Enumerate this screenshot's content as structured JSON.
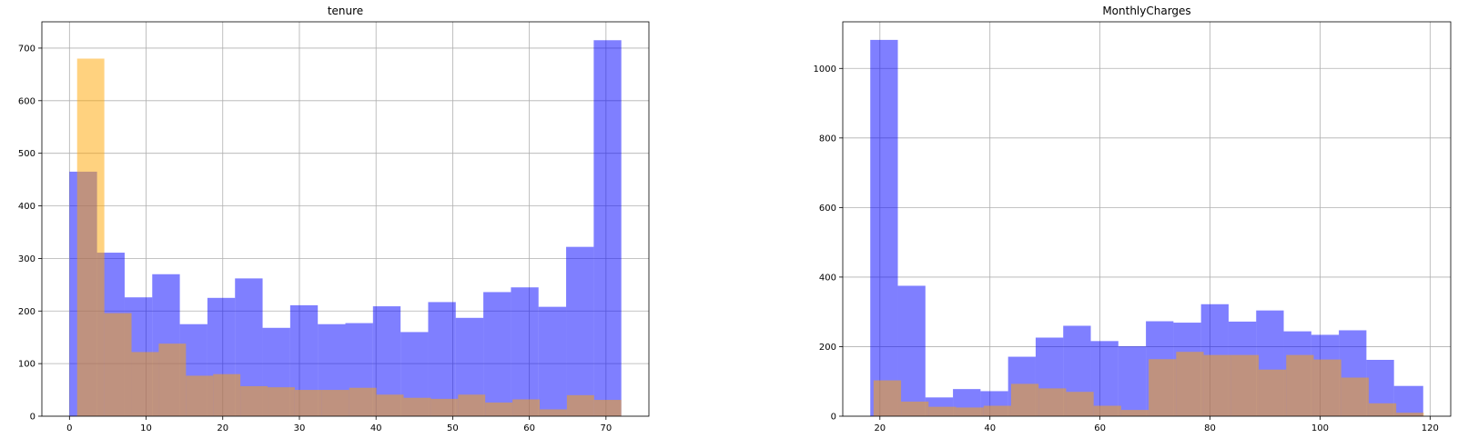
{
  "chart_data": [
    {
      "type": "bar",
      "title": "tenure",
      "xlabel": "",
      "ylabel": "",
      "xlim": [
        -3.6,
        75.6
      ],
      "ylim": [
        0,
        750
      ],
      "xticks": [
        0,
        10,
        20,
        30,
        40,
        50,
        60,
        70
      ],
      "yticks": [
        0,
        100,
        200,
        300,
        400,
        500,
        600,
        700
      ],
      "grid": true,
      "series": [
        {
          "color": "#0000ff",
          "opacity": 0.5,
          "bins": [
            {
              "x0": 0,
              "x1": 3.6,
              "y": 465
            },
            {
              "x0": 3.6,
              "x1": 7.2,
              "y": 311
            },
            {
              "x0": 7.2,
              "x1": 10.8,
              "y": 226
            },
            {
              "x0": 10.8,
              "x1": 14.4,
              "y": 270
            },
            {
              "x0": 14.4,
              "x1": 18.0,
              "y": 175
            },
            {
              "x0": 18.0,
              "x1": 21.6,
              "y": 225
            },
            {
              "x0": 21.6,
              "x1": 25.2,
              "y": 262
            },
            {
              "x0": 25.2,
              "x1": 28.8,
              "y": 168
            },
            {
              "x0": 28.8,
              "x1": 32.4,
              "y": 211
            },
            {
              "x0": 32.4,
              "x1": 36.0,
              "y": 175
            },
            {
              "x0": 36.0,
              "x1": 39.6,
              "y": 177
            },
            {
              "x0": 39.6,
              "x1": 43.2,
              "y": 209
            },
            {
              "x0": 43.2,
              "x1": 46.8,
              "y": 160
            },
            {
              "x0": 46.8,
              "x1": 50.4,
              "y": 217
            },
            {
              "x0": 50.4,
              "x1": 54.0,
              "y": 187
            },
            {
              "x0": 54.0,
              "x1": 57.6,
              "y": 236
            },
            {
              "x0": 57.6,
              "x1": 61.2,
              "y": 245
            },
            {
              "x0": 61.2,
              "x1": 64.8,
              "y": 208
            },
            {
              "x0": 64.8,
              "x1": 68.4,
              "y": 322
            },
            {
              "x0": 68.4,
              "x1": 72.0,
              "y": 715
            }
          ]
        },
        {
          "color": "#ffa500",
          "opacity": 0.5,
          "bins": [
            {
              "x0": 1.0,
              "x1": 4.55,
              "y": 680
            },
            {
              "x0": 4.55,
              "x1": 8.1,
              "y": 196
            },
            {
              "x0": 8.1,
              "x1": 11.65,
              "y": 122
            },
            {
              "x0": 11.65,
              "x1": 15.2,
              "y": 138
            },
            {
              "x0": 15.2,
              "x1": 18.75,
              "y": 77
            },
            {
              "x0": 18.75,
              "x1": 22.3,
              "y": 80
            },
            {
              "x0": 22.3,
              "x1": 25.85,
              "y": 57
            },
            {
              "x0": 25.85,
              "x1": 29.4,
              "y": 55
            },
            {
              "x0": 29.4,
              "x1": 32.95,
              "y": 50
            },
            {
              "x0": 32.95,
              "x1": 36.5,
              "y": 50
            },
            {
              "x0": 36.5,
              "x1": 40.05,
              "y": 54
            },
            {
              "x0": 40.05,
              "x1": 43.6,
              "y": 41
            },
            {
              "x0": 43.6,
              "x1": 47.15,
              "y": 35
            },
            {
              "x0": 47.15,
              "x1": 50.7,
              "y": 33
            },
            {
              "x0": 50.7,
              "x1": 54.25,
              "y": 41
            },
            {
              "x0": 54.25,
              "x1": 57.8,
              "y": 26
            },
            {
              "x0": 57.8,
              "x1": 61.35,
              "y": 32
            },
            {
              "x0": 61.35,
              "x1": 64.9,
              "y": 13
            },
            {
              "x0": 64.9,
              "x1": 68.45,
              "y": 40
            },
            {
              "x0": 68.45,
              "x1": 72.0,
              "y": 31
            }
          ]
        }
      ]
    },
    {
      "type": "bar",
      "title": "MonthlyCharges",
      "xlabel": "",
      "ylabel": "",
      "xlim": [
        13.25,
        123.75
      ],
      "ylim": [
        0,
        1134
      ],
      "xticks": [
        20,
        40,
        60,
        80,
        100,
        120
      ],
      "yticks": [
        0,
        200,
        400,
        600,
        800,
        1000
      ],
      "grid": true,
      "series": [
        {
          "color": "#0000ff",
          "opacity": 0.5,
          "bins": [
            {
              "x0": 18.25,
              "x1": 23.26,
              "y": 1082
            },
            {
              "x0": 23.26,
              "x1": 28.27,
              "y": 375
            },
            {
              "x0": 28.27,
              "x1": 33.28,
              "y": 54
            },
            {
              "x0": 33.28,
              "x1": 38.29,
              "y": 78
            },
            {
              "x0": 38.29,
              "x1": 43.3,
              "y": 72
            },
            {
              "x0": 43.3,
              "x1": 48.31,
              "y": 171
            },
            {
              "x0": 48.31,
              "x1": 53.32,
              "y": 226
            },
            {
              "x0": 53.32,
              "x1": 58.33,
              "y": 260
            },
            {
              "x0": 58.33,
              "x1": 63.34,
              "y": 216
            },
            {
              "x0": 63.34,
              "x1": 68.35,
              "y": 201
            },
            {
              "x0": 68.35,
              "x1": 73.36,
              "y": 273
            },
            {
              "x0": 73.36,
              "x1": 78.37,
              "y": 269
            },
            {
              "x0": 78.37,
              "x1": 83.38,
              "y": 322
            },
            {
              "x0": 83.38,
              "x1": 88.39,
              "y": 272
            },
            {
              "x0": 88.39,
              "x1": 93.4,
              "y": 304
            },
            {
              "x0": 93.4,
              "x1": 98.41,
              "y": 244
            },
            {
              "x0": 98.41,
              "x1": 103.42,
              "y": 234
            },
            {
              "x0": 103.42,
              "x1": 108.43,
              "y": 247
            },
            {
              "x0": 108.43,
              "x1": 113.44,
              "y": 162
            },
            {
              "x0": 113.44,
              "x1": 118.75,
              "y": 87
            }
          ]
        },
        {
          "color": "#ffa500",
          "opacity": 0.5,
          "bins": [
            {
              "x0": 18.85,
              "x1": 23.85,
              "y": 103
            },
            {
              "x0": 23.85,
              "x1": 28.85,
              "y": 42
            },
            {
              "x0": 28.85,
              "x1": 33.85,
              "y": 27
            },
            {
              "x0": 33.85,
              "x1": 38.85,
              "y": 25
            },
            {
              "x0": 38.85,
              "x1": 43.85,
              "y": 30
            },
            {
              "x0": 43.85,
              "x1": 48.85,
              "y": 93
            },
            {
              "x0": 48.85,
              "x1": 53.85,
              "y": 80
            },
            {
              "x0": 53.85,
              "x1": 58.85,
              "y": 70
            },
            {
              "x0": 58.85,
              "x1": 63.85,
              "y": 30
            },
            {
              "x0": 63.85,
              "x1": 68.85,
              "y": 18
            },
            {
              "x0": 68.85,
              "x1": 73.85,
              "y": 164
            },
            {
              "x0": 73.85,
              "x1": 78.85,
              "y": 185
            },
            {
              "x0": 78.85,
              "x1": 83.85,
              "y": 176
            },
            {
              "x0": 83.85,
              "x1": 88.85,
              "y": 176
            },
            {
              "x0": 88.85,
              "x1": 93.85,
              "y": 134
            },
            {
              "x0": 93.85,
              "x1": 98.85,
              "y": 176
            },
            {
              "x0": 98.85,
              "x1": 103.85,
              "y": 163
            },
            {
              "x0": 103.85,
              "x1": 108.85,
              "y": 111
            },
            {
              "x0": 108.85,
              "x1": 113.85,
              "y": 37
            },
            {
              "x0": 113.85,
              "x1": 118.85,
              "y": 10
            }
          ]
        }
      ]
    }
  ]
}
